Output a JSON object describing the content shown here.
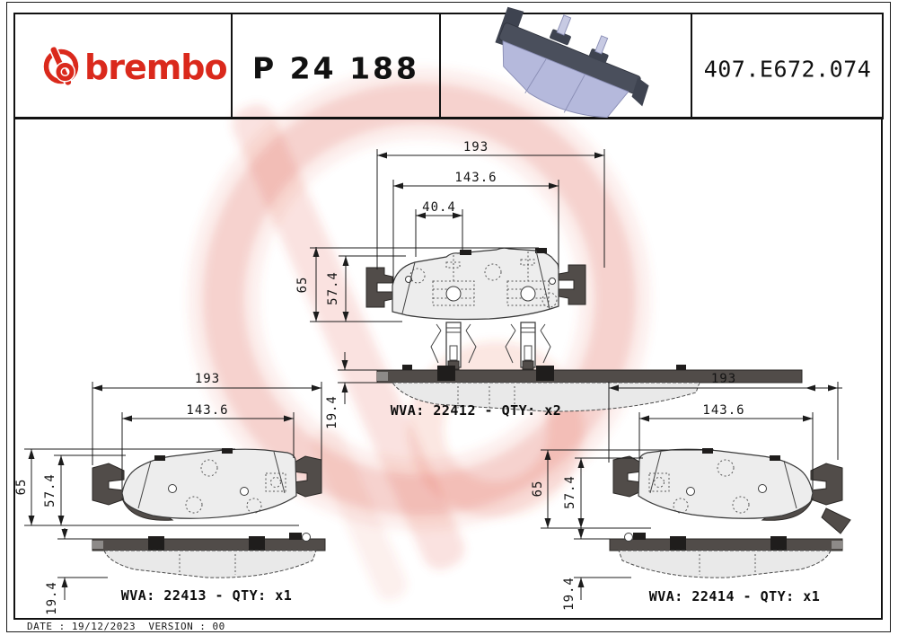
{
  "header": {
    "brand": "brembo",
    "part_number": "P 24 188",
    "reference_code": "407.E672.074"
  },
  "diagrams": {
    "top": {
      "wva": "22412",
      "qty": "x2",
      "wva_line": "WVA: 22412 - QTY: x2",
      "dims": {
        "overall_width": "193",
        "pad_width": "143.6",
        "clip_spacing": "40.4",
        "overall_height": "65",
        "pad_height": "57.4",
        "thickness": "19.4"
      }
    },
    "bottom_left": {
      "wva": "22413",
      "qty": "x1",
      "wva_line": "WVA: 22413 - QTY: x1",
      "dims": {
        "overall_width": "193",
        "pad_width": "143.6",
        "overall_height": "65",
        "pad_height": "57.4",
        "thickness": "19.4"
      }
    },
    "bottom_right": {
      "wva": "22414",
      "qty": "x1",
      "wva_line": "WVA: 22414 - QTY: x1",
      "dims": {
        "overall_width": "193",
        "pad_width": "143.6",
        "overall_height": "65",
        "pad_height": "57.4",
        "thickness": "19.4"
      }
    }
  },
  "footer": {
    "date_line": "DATE : 19/12/2023  VERSION : 00"
  },
  "colors": {
    "brand_red": "#da291c",
    "watermark_pink": "#f6d4cd",
    "steel_dark": "#514c49",
    "pad_gray": "#ededed",
    "pad_3d_lavender": "#b5b9dc"
  }
}
